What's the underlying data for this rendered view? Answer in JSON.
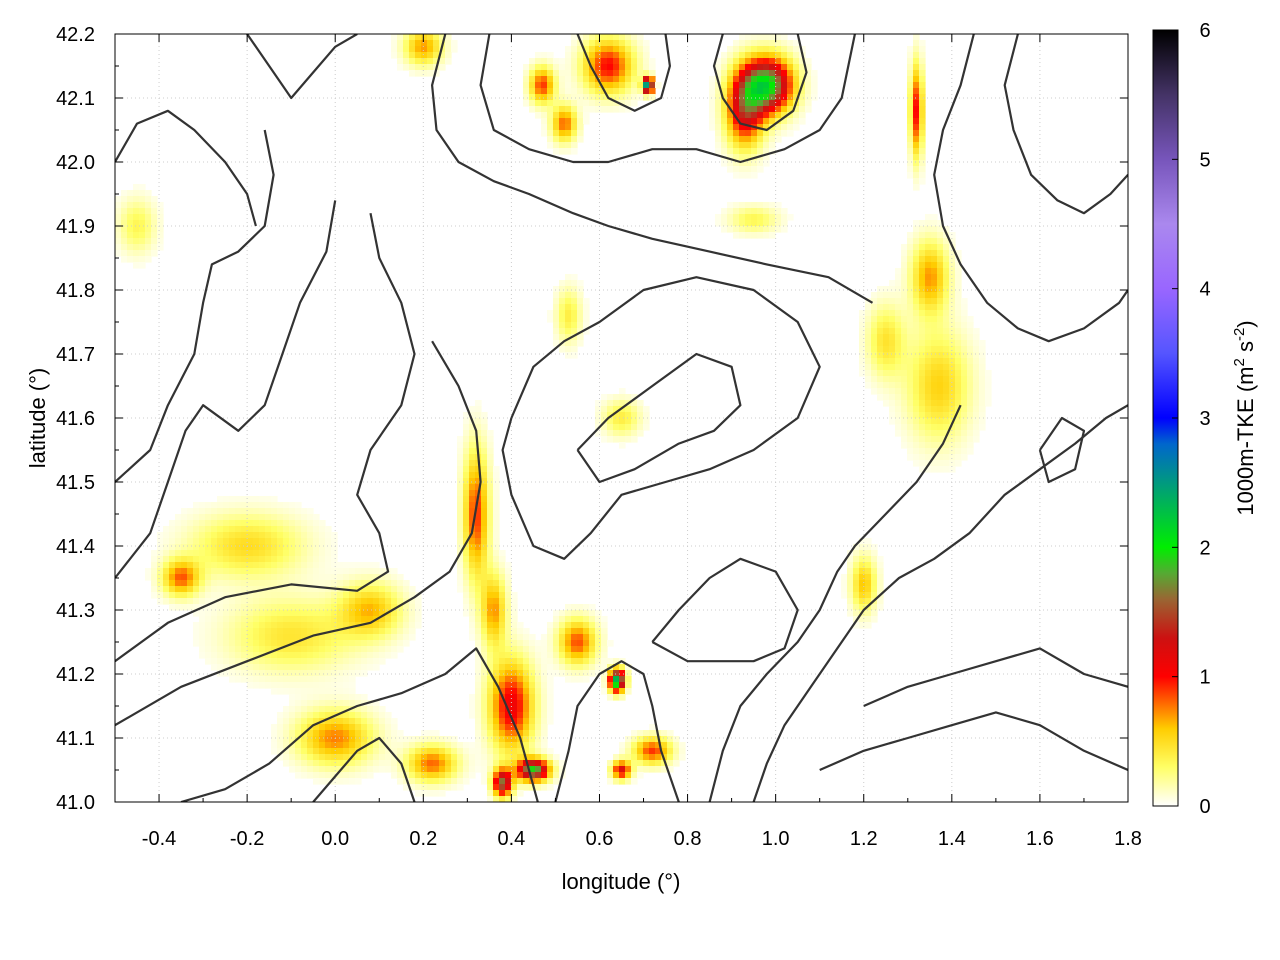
{
  "chart_data": {
    "type": "heatmap",
    "title": "",
    "xlabel": "longitude (°)",
    "ylabel": "latitude (°)",
    "xlim": [
      -0.5,
      1.8
    ],
    "ylim": [
      41.0,
      42.2
    ],
    "x_ticks": [
      -0.4,
      -0.2,
      0.0,
      0.2,
      0.4,
      0.6,
      0.8,
      1.0,
      1.2,
      1.4,
      1.6,
      1.8
    ],
    "x_tick_labels": [
      "-0.4",
      "-0.2",
      "0.0",
      "0.2",
      "0.4",
      "0.6",
      "0.8",
      "1.0",
      "1.2",
      "1.4",
      "1.6",
      "1.8"
    ],
    "y_ticks": [
      41.0,
      41.1,
      41.2,
      41.3,
      41.4,
      41.5,
      41.6,
      41.7,
      41.8,
      41.9,
      42.0,
      42.1,
      42.2
    ],
    "y_tick_labels": [
      "41.0",
      "41.1",
      "41.2",
      "41.3",
      "41.4",
      "41.5",
      "41.6",
      "41.7",
      "41.8",
      "41.9",
      "42.0",
      "42.1",
      "42.2"
    ],
    "grid": true,
    "colorbar": {
      "label_main": "1000m-TKE (m",
      "label_sup1": "2",
      "label_mid": " s",
      "label_sup2": "-2",
      "label_end": ")",
      "range": [
        0,
        6
      ],
      "ticks": [
        0,
        1,
        2,
        3,
        4,
        5,
        6
      ],
      "tick_labels": [
        "0",
        "1",
        "2",
        "3",
        "4",
        "5",
        "6"
      ],
      "stops": [
        {
          "v": 0.0,
          "color": "#ffffff"
        },
        {
          "v": 0.3,
          "color": "#ffff66"
        },
        {
          "v": 0.6,
          "color": "#ffcc00"
        },
        {
          "v": 0.8,
          "color": "#ff6600"
        },
        {
          "v": 1.0,
          "color": "#ff0000"
        },
        {
          "v": 1.3,
          "color": "#cc1111"
        },
        {
          "v": 1.6,
          "color": "#996633"
        },
        {
          "v": 1.8,
          "color": "#55aa33"
        },
        {
          "v": 2.0,
          "color": "#00ee00"
        },
        {
          "v": 2.4,
          "color": "#00aa66"
        },
        {
          "v": 2.8,
          "color": "#0066cc"
        },
        {
          "v": 3.0,
          "color": "#0000ff"
        },
        {
          "v": 3.5,
          "color": "#5555ff"
        },
        {
          "v": 4.0,
          "color": "#9966ff"
        },
        {
          "v": 4.5,
          "color": "#aa88ee"
        },
        {
          "v": 5.0,
          "color": "#7755bb"
        },
        {
          "v": 5.5,
          "color": "#443366"
        },
        {
          "v": 6.0,
          "color": "#000000"
        }
      ]
    },
    "hotspots": [
      {
        "lon": -0.2,
        "lat": 41.4,
        "tke": 0.5,
        "sx": 0.09,
        "sy": 0.035
      },
      {
        "lon": -0.35,
        "lat": 41.35,
        "tke": 0.8,
        "sx": 0.03,
        "sy": 0.02
      },
      {
        "lon": -0.1,
        "lat": 41.26,
        "tke": 0.45,
        "sx": 0.1,
        "sy": 0.04
      },
      {
        "lon": 0.08,
        "lat": 41.3,
        "tke": 0.6,
        "sx": 0.05,
        "sy": 0.03
      },
      {
        "lon": 0.0,
        "lat": 41.1,
        "tke": 0.75,
        "sx": 0.06,
        "sy": 0.03
      },
      {
        "lon": 0.22,
        "lat": 41.06,
        "tke": 0.8,
        "sx": 0.04,
        "sy": 0.02
      },
      {
        "lon": 0.32,
        "lat": 41.45,
        "tke": 0.9,
        "sx": 0.02,
        "sy": 0.07
      },
      {
        "lon": 0.36,
        "lat": 41.3,
        "tke": 0.7,
        "sx": 0.02,
        "sy": 0.04
      },
      {
        "lon": 0.4,
        "lat": 41.15,
        "tke": 1.1,
        "sx": 0.035,
        "sy": 0.05
      },
      {
        "lon": 0.45,
        "lat": 41.05,
        "tke": 1.9,
        "sx": 0.025,
        "sy": 0.012
      },
      {
        "lon": 0.38,
        "lat": 41.03,
        "tke": 1.6,
        "sx": 0.015,
        "sy": 0.015
      },
      {
        "lon": 0.55,
        "lat": 41.25,
        "tke": 0.85,
        "sx": 0.03,
        "sy": 0.025
      },
      {
        "lon": 0.64,
        "lat": 41.19,
        "tke": 2.4,
        "sx": 0.012,
        "sy": 0.012
      },
      {
        "lon": 0.72,
        "lat": 41.08,
        "tke": 0.9,
        "sx": 0.03,
        "sy": 0.015
      },
      {
        "lon": 0.65,
        "lat": 41.05,
        "tke": 1.2,
        "sx": 0.015,
        "sy": 0.01
      },
      {
        "lon": 0.98,
        "lat": 42.12,
        "tke": 2.0,
        "sx": 0.04,
        "sy": 0.03
      },
      {
        "lon": 0.93,
        "lat": 42.08,
        "tke": 1.2,
        "sx": 0.03,
        "sy": 0.04
      },
      {
        "lon": 0.62,
        "lat": 42.15,
        "tke": 1.0,
        "sx": 0.04,
        "sy": 0.03
      },
      {
        "lon": 0.71,
        "lat": 42.12,
        "tke": 2.8,
        "sx": 0.008,
        "sy": 0.008
      },
      {
        "lon": 0.47,
        "lat": 42.12,
        "tke": 0.9,
        "sx": 0.02,
        "sy": 0.02
      },
      {
        "lon": 0.52,
        "lat": 42.06,
        "tke": 0.8,
        "sx": 0.02,
        "sy": 0.02
      },
      {
        "lon": 0.2,
        "lat": 42.18,
        "tke": 0.7,
        "sx": 0.03,
        "sy": 0.02
      },
      {
        "lon": 1.32,
        "lat": 42.08,
        "tke": 1.0,
        "sx": 0.01,
        "sy": 0.05
      },
      {
        "lon": 1.35,
        "lat": 41.82,
        "tke": 0.7,
        "sx": 0.03,
        "sy": 0.04
      },
      {
        "lon": 1.37,
        "lat": 41.65,
        "tke": 0.55,
        "sx": 0.05,
        "sy": 0.06
      },
      {
        "lon": 1.25,
        "lat": 41.72,
        "tke": 0.45,
        "sx": 0.03,
        "sy": 0.04
      },
      {
        "lon": 0.65,
        "lat": 41.6,
        "tke": 0.4,
        "sx": 0.03,
        "sy": 0.02
      },
      {
        "lon": 0.53,
        "lat": 41.76,
        "tke": 0.4,
        "sx": 0.02,
        "sy": 0.03
      },
      {
        "lon": 1.2,
        "lat": 41.34,
        "tke": 0.6,
        "sx": 0.02,
        "sy": 0.03
      },
      {
        "lon": -0.45,
        "lat": 41.9,
        "tke": 0.35,
        "sx": 0.03,
        "sy": 0.03
      },
      {
        "lon": 0.95,
        "lat": 41.91,
        "tke": 0.35,
        "sx": 0.04,
        "sy": 0.015
      }
    ],
    "contours": [
      [
        [
          -0.35,
          41.0
        ],
        [
          -0.25,
          41.02
        ],
        [
          -0.15,
          41.06
        ],
        [
          -0.05,
          41.12
        ],
        [
          0.05,
          41.15
        ],
        [
          0.15,
          41.17
        ],
        [
          0.25,
          41.2
        ],
        [
          0.32,
          41.24
        ],
        [
          0.37,
          41.18
        ],
        [
          0.42,
          41.1
        ],
        [
          0.46,
          41.0
        ]
      ],
      [
        [
          -0.5,
          41.12
        ],
        [
          -0.35,
          41.18
        ],
        [
          -0.2,
          41.22
        ],
        [
          -0.05,
          41.26
        ],
        [
          0.08,
          41.28
        ],
        [
          0.18,
          41.32
        ],
        [
          0.26,
          41.36
        ],
        [
          0.31,
          41.42
        ],
        [
          0.33,
          41.5
        ],
        [
          0.32,
          41.58
        ],
        [
          0.28,
          41.65
        ],
        [
          0.22,
          41.72
        ]
      ],
      [
        [
          -0.5,
          41.22
        ],
        [
          -0.38,
          41.28
        ],
        [
          -0.25,
          41.32
        ],
        [
          -0.1,
          41.34
        ],
        [
          0.05,
          41.33
        ],
        [
          0.12,
          41.36
        ],
        [
          0.1,
          41.42
        ],
        [
          0.05,
          41.48
        ],
        [
          0.08,
          41.55
        ],
        [
          0.15,
          41.62
        ],
        [
          0.18,
          41.7
        ],
        [
          0.15,
          41.78
        ],
        [
          0.1,
          41.85
        ],
        [
          0.08,
          41.92
        ]
      ],
      [
        [
          -0.5,
          41.35
        ],
        [
          -0.42,
          41.42
        ],
        [
          -0.38,
          41.5
        ],
        [
          -0.34,
          41.58
        ],
        [
          -0.3,
          41.62
        ],
        [
          -0.22,
          41.58
        ],
        [
          -0.16,
          41.62
        ],
        [
          -0.12,
          41.7
        ],
        [
          -0.08,
          41.78
        ],
        [
          -0.02,
          41.86
        ],
        [
          0.0,
          41.94
        ]
      ],
      [
        [
          -0.5,
          41.5
        ],
        [
          -0.42,
          41.55
        ],
        [
          -0.38,
          41.62
        ],
        [
          -0.32,
          41.7
        ],
        [
          -0.3,
          41.78
        ],
        [
          -0.28,
          41.84
        ],
        [
          -0.22,
          41.86
        ],
        [
          -0.16,
          41.9
        ],
        [
          -0.14,
          41.98
        ],
        [
          -0.16,
          42.05
        ]
      ],
      [
        [
          -0.5,
          42.0
        ],
        [
          -0.45,
          42.06
        ],
        [
          -0.38,
          42.08
        ],
        [
          -0.32,
          42.05
        ],
        [
          -0.25,
          42.0
        ],
        [
          -0.2,
          41.95
        ],
        [
          -0.18,
          41.9
        ]
      ],
      [
        [
          -0.2,
          42.2
        ],
        [
          -0.15,
          42.15
        ],
        [
          -0.1,
          42.1
        ],
        [
          -0.05,
          42.14
        ],
        [
          0.0,
          42.18
        ],
        [
          0.05,
          42.2
        ]
      ],
      [
        [
          0.25,
          42.2
        ],
        [
          0.22,
          42.12
        ],
        [
          0.23,
          42.05
        ],
        [
          0.28,
          42.0
        ],
        [
          0.36,
          41.97
        ],
        [
          0.44,
          41.95
        ],
        [
          0.54,
          41.92
        ],
        [
          0.62,
          41.9
        ],
        [
          0.72,
          41.88
        ],
        [
          0.85,
          41.86
        ],
        [
          0.98,
          41.84
        ],
        [
          1.12,
          41.82
        ],
        [
          1.22,
          41.78
        ]
      ],
      [
        [
          0.35,
          42.2
        ],
        [
          0.33,
          42.12
        ],
        [
          0.36,
          42.05
        ],
        [
          0.44,
          42.02
        ],
        [
          0.54,
          42.0
        ],
        [
          0.62,
          42.0
        ],
        [
          0.72,
          42.02
        ],
        [
          0.82,
          42.02
        ],
        [
          0.92,
          42.0
        ],
        [
          1.02,
          42.02
        ],
        [
          1.1,
          42.05
        ],
        [
          1.15,
          42.1
        ],
        [
          1.18,
          42.2
        ]
      ],
      [
        [
          0.55,
          42.2
        ],
        [
          0.58,
          42.15
        ],
        [
          0.62,
          42.1
        ],
        [
          0.68,
          42.08
        ],
        [
          0.74,
          42.1
        ],
        [
          0.76,
          42.15
        ],
        [
          0.75,
          42.2
        ]
      ],
      [
        [
          0.88,
          42.2
        ],
        [
          0.86,
          42.15
        ],
        [
          0.88,
          42.1
        ],
        [
          0.92,
          42.06
        ],
        [
          0.98,
          42.05
        ],
        [
          1.04,
          42.08
        ],
        [
          1.07,
          42.14
        ],
        [
          1.05,
          42.2
        ]
      ],
      [
        [
          0.4,
          41.6
        ],
        [
          0.45,
          41.68
        ],
        [
          0.52,
          41.72
        ],
        [
          0.6,
          41.75
        ],
        [
          0.7,
          41.8
        ],
        [
          0.82,
          41.82
        ],
        [
          0.95,
          41.8
        ],
        [
          1.05,
          41.75
        ],
        [
          1.1,
          41.68
        ],
        [
          1.05,
          41.6
        ],
        [
          0.95,
          41.55
        ],
        [
          0.85,
          41.52
        ],
        [
          0.75,
          41.5
        ],
        [
          0.65,
          41.48
        ],
        [
          0.58,
          41.42
        ],
        [
          0.52,
          41.38
        ],
        [
          0.45,
          41.4
        ],
        [
          0.4,
          41.48
        ],
        [
          0.38,
          41.55
        ],
        [
          0.4,
          41.6
        ]
      ],
      [
        [
          0.55,
          41.55
        ],
        [
          0.62,
          41.6
        ],
        [
          0.72,
          41.65
        ],
        [
          0.82,
          41.7
        ],
        [
          0.9,
          41.68
        ],
        [
          0.92,
          41.62
        ],
        [
          0.86,
          41.58
        ],
        [
          0.78,
          41.56
        ],
        [
          0.68,
          41.52
        ],
        [
          0.6,
          41.5
        ],
        [
          0.55,
          41.55
        ]
      ],
      [
        [
          0.5,
          41.0
        ],
        [
          0.53,
          41.08
        ],
        [
          0.55,
          41.15
        ],
        [
          0.6,
          41.2
        ],
        [
          0.65,
          41.22
        ],
        [
          0.7,
          41.2
        ],
        [
          0.72,
          41.15
        ],
        [
          0.74,
          41.08
        ],
        [
          0.78,
          41.0
        ]
      ],
      [
        [
          0.85,
          41.0
        ],
        [
          0.88,
          41.08
        ],
        [
          0.92,
          41.15
        ],
        [
          0.98,
          41.2
        ],
        [
          1.05,
          41.25
        ],
        [
          1.1,
          41.3
        ],
        [
          1.14,
          41.36
        ],
        [
          1.18,
          41.4
        ],
        [
          1.25,
          41.45
        ],
        [
          1.32,
          41.5
        ],
        [
          1.38,
          41.56
        ],
        [
          1.42,
          41.62
        ]
      ],
      [
        [
          0.95,
          41.0
        ],
        [
          0.98,
          41.06
        ],
        [
          1.02,
          41.12
        ],
        [
          1.08,
          41.18
        ],
        [
          1.14,
          41.24
        ],
        [
          1.2,
          41.3
        ],
        [
          1.28,
          41.35
        ],
        [
          1.36,
          41.38
        ],
        [
          1.44,
          41.42
        ],
        [
          1.52,
          41.48
        ],
        [
          1.6,
          41.52
        ],
        [
          1.68,
          41.56
        ],
        [
          1.75,
          41.6
        ],
        [
          1.8,
          41.62
        ]
      ],
      [
        [
          0.72,
          41.25
        ],
        [
          0.78,
          41.3
        ],
        [
          0.85,
          41.35
        ],
        [
          0.92,
          41.38
        ],
        [
          1.0,
          41.36
        ],
        [
          1.05,
          41.3
        ],
        [
          1.02,
          41.24
        ],
        [
          0.95,
          41.22
        ],
        [
          0.88,
          41.22
        ],
        [
          0.8,
          41.22
        ],
        [
          0.72,
          41.25
        ]
      ],
      [
        [
          1.2,
          41.15
        ],
        [
          1.3,
          41.18
        ],
        [
          1.4,
          41.2
        ],
        [
          1.5,
          41.22
        ],
        [
          1.6,
          41.24
        ],
        [
          1.7,
          41.2
        ],
        [
          1.8,
          41.18
        ]
      ],
      [
        [
          1.1,
          41.05
        ],
        [
          1.2,
          41.08
        ],
        [
          1.3,
          41.1
        ],
        [
          1.4,
          41.12
        ],
        [
          1.5,
          41.14
        ],
        [
          1.6,
          41.12
        ],
        [
          1.7,
          41.08
        ],
        [
          1.8,
          41.05
        ]
      ],
      [
        [
          1.45,
          42.2
        ],
        [
          1.42,
          42.12
        ],
        [
          1.38,
          42.05
        ],
        [
          1.36,
          41.98
        ],
        [
          1.38,
          41.9
        ],
        [
          1.42,
          41.84
        ],
        [
          1.48,
          41.78
        ],
        [
          1.55,
          41.74
        ],
        [
          1.62,
          41.72
        ],
        [
          1.7,
          41.74
        ],
        [
          1.78,
          41.78
        ],
        [
          1.8,
          41.8
        ]
      ],
      [
        [
          1.55,
          42.2
        ],
        [
          1.52,
          42.12
        ],
        [
          1.54,
          42.05
        ],
        [
          1.58,
          41.98
        ],
        [
          1.64,
          41.94
        ],
        [
          1.7,
          41.92
        ],
        [
          1.76,
          41.95
        ],
        [
          1.8,
          41.98
        ]
      ],
      [
        [
          1.6,
          41.55
        ],
        [
          1.65,
          41.6
        ],
        [
          1.7,
          41.58
        ],
        [
          1.68,
          41.52
        ],
        [
          1.62,
          41.5
        ],
        [
          1.6,
          41.55
        ]
      ],
      [
        [
          -0.05,
          41.0
        ],
        [
          0.0,
          41.04
        ],
        [
          0.05,
          41.08
        ],
        [
          0.1,
          41.1
        ],
        [
          0.15,
          41.06
        ],
        [
          0.18,
          41.0
        ]
      ]
    ]
  }
}
